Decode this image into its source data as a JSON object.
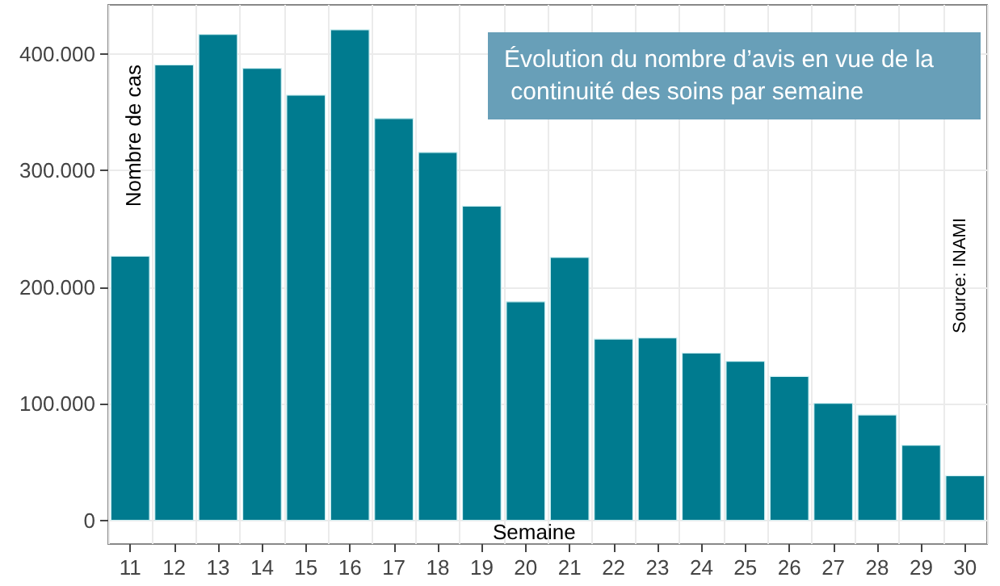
{
  "chart_data": {
    "type": "bar",
    "title": "Évolution du nombre d’avis en vue de la continuité des soins par semaine",
    "xlabel": "Semaine",
    "ylabel": "Nombre de cas",
    "annotations": [
      "Source: INAMI"
    ],
    "categories": [
      "11",
      "12",
      "13",
      "14",
      "15",
      "16",
      "17",
      "18",
      "19",
      "20",
      "21",
      "22",
      "23",
      "24",
      "25",
      "26",
      "27",
      "28",
      "29",
      "30"
    ],
    "values": [
      227000,
      391000,
      417000,
      388000,
      365000,
      421000,
      345000,
      316000,
      270000,
      188000,
      226000,
      156000,
      157000,
      144000,
      137000,
      124000,
      101000,
      91000,
      65000,
      39000
    ],
    "color": "#007b8f",
    "ylim": [
      -20000,
      442000
    ],
    "yticks": [
      {
        "value": 0,
        "label": "0"
      },
      {
        "value": 100000,
        "label": "100.000"
      },
      {
        "value": 200000,
        "label": "200.000"
      },
      {
        "value": 300000,
        "label": "300.000"
      },
      {
        "value": 400000,
        "label": "400.000"
      }
    ],
    "grid": true
  }
}
